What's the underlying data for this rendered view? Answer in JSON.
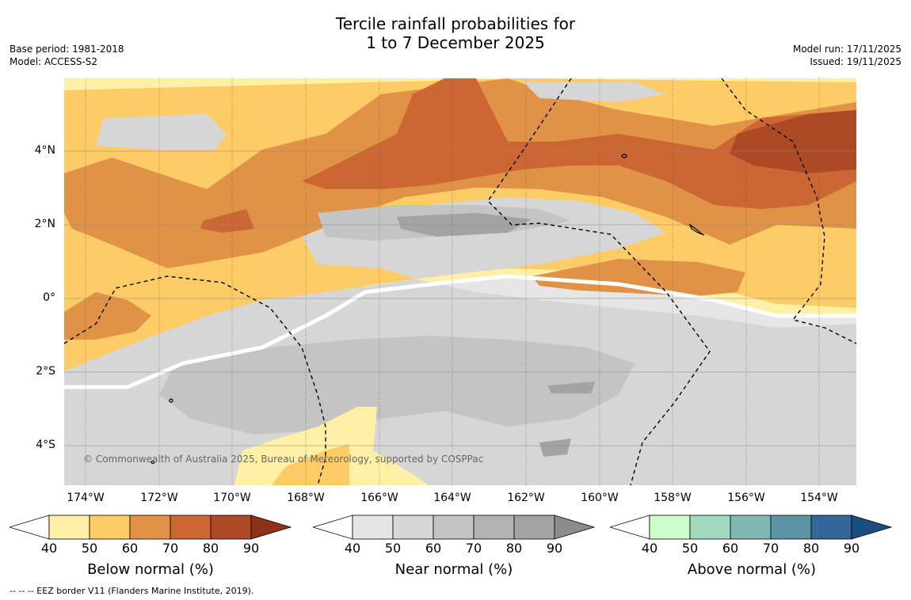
{
  "title": {
    "line1": "Tercile rainfall probabilities for",
    "line2": "1 to 7 December 2025"
  },
  "meta_left": {
    "base_period": "Base period: 1981-2018",
    "model": "Model: ACCESS-S2"
  },
  "meta_right": {
    "model_run": "Model run: 17/11/2025",
    "issued": "Issued: 19/11/2025"
  },
  "map": {
    "lat_labels": [
      "4°N",
      "2°N",
      "0°",
      "2°S",
      "4°S"
    ],
    "lon_labels": [
      "174°W",
      "172°W",
      "170°W",
      "168°W",
      "166°W",
      "164°W",
      "162°W",
      "160°W",
      "158°W",
      "156°W",
      "154°W"
    ],
    "credit": "© Commonwealth of Australia 2025, Bureau of Meteorology, supported by COSPPac"
  },
  "legend": {
    "ticks": [
      "40",
      "50",
      "60",
      "70",
      "80",
      "90"
    ],
    "below": {
      "label": "Below normal (%)",
      "colors": [
        "#ffffff",
        "#fff0a8",
        "#fecc66",
        "#e09347",
        "#cc6633",
        "#ad4a26",
        "#8b3219"
      ]
    },
    "near": {
      "label": "Near normal (%)",
      "colors": [
        "#ffffff",
        "#e6e6e6",
        "#d6d6d6",
        "#c4c4c4",
        "#b3b3b3",
        "#a3a3a3",
        "#8c8c8c"
      ]
    },
    "above": {
      "label": "Above normal (%)",
      "colors": [
        "#ffffff",
        "#ccffcc",
        "#a3d9bf",
        "#80b8b3",
        "#5c94a3",
        "#336699",
        "#1a4d80"
      ]
    }
  },
  "footnote": "-- -- -- EEZ border V11 (Flanders Marine Institute, 2019)."
}
